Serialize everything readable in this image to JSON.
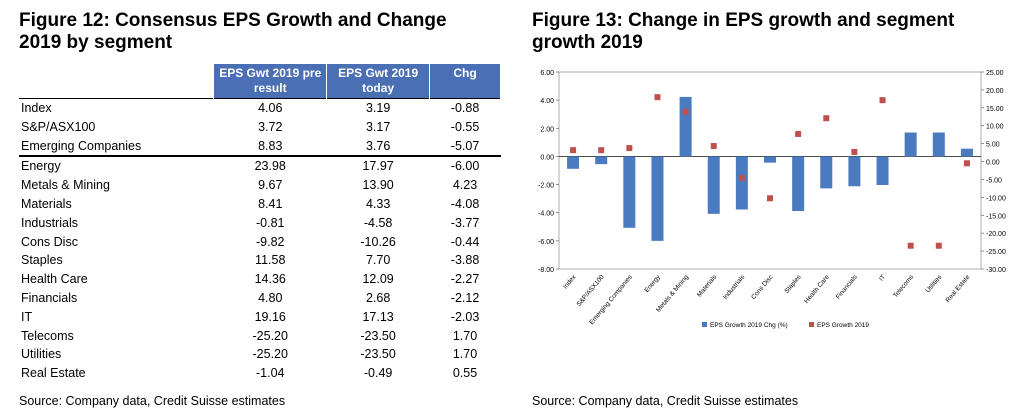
{
  "left": {
    "title": "Figure 12: Consensus EPS Growth and Change 2019 by segment",
    "columns": [
      "EPS Gwt 2019 pre result",
      "EPS Gwt 2019 today",
      "Chg"
    ],
    "rows": [
      {
        "label": "Index",
        "pre": "4.06",
        "today": "3.19",
        "chg": "-0.88"
      },
      {
        "label": "S&P/ASX100",
        "pre": "3.72",
        "today": "3.17",
        "chg": "-0.55"
      },
      {
        "label": "Emerging Companies",
        "pre": "8.83",
        "today": "3.76",
        "chg": "-5.07"
      },
      {
        "label": "Energy",
        "pre": "23.98",
        "today": "17.97",
        "chg": "-6.00"
      },
      {
        "label": "Metals & Mining",
        "pre": "9.67",
        "today": "13.90",
        "chg": "4.23"
      },
      {
        "label": "Materials",
        "pre": "8.41",
        "today": "4.33",
        "chg": "-4.08"
      },
      {
        "label": "Industrials",
        "pre": "-0.81",
        "today": "-4.58",
        "chg": "-3.77"
      },
      {
        "label": "Cons Disc",
        "pre": "-9.82",
        "today": "-10.26",
        "chg": "-0.44"
      },
      {
        "label": "Staples",
        "pre": "11.58",
        "today": "7.70",
        "chg": "-3.88"
      },
      {
        "label": "Health Care",
        "pre": "14.36",
        "today": "12.09",
        "chg": "-2.27"
      },
      {
        "label": "Financials",
        "pre": "4.80",
        "today": "2.68",
        "chg": "-2.12"
      },
      {
        "label": "IT",
        "pre": "19.16",
        "today": "17.13",
        "chg": "-2.03"
      },
      {
        "label": "Telecoms",
        "pre": "-25.20",
        "today": "-23.50",
        "chg": "1.70"
      },
      {
        "label": "Utilities",
        "pre": "-25.20",
        "today": "-23.50",
        "chg": "1.70"
      },
      {
        "label": "Real Estate",
        "pre": "-1.04",
        "today": "-0.49",
        "chg": "0.55"
      }
    ],
    "source": "Source: Company data, Credit Suisse estimates"
  },
  "right": {
    "title": "Figure 13: Change in EPS growth and segment growth 2019",
    "source": "Source: Company data, Credit Suisse estimates"
  },
  "chart_data": {
    "type": "bar",
    "categories": [
      "Index",
      "S&P/ASX100",
      "Emerging Companies",
      "Energy",
      "Metals & Mining",
      "Materials",
      "Industrials",
      "Cons Disc",
      "Staples",
      "Health Care",
      "Financials",
      "IT",
      "Telecoms",
      "Utilities",
      "Real Estate"
    ],
    "series": [
      {
        "name": "EPS Growth 2019 Chg (%)",
        "axis": "left",
        "type": "bar",
        "color": "#4a7abf",
        "values": [
          -0.88,
          -0.55,
          -5.07,
          -6.0,
          4.23,
          -4.08,
          -3.77,
          -0.44,
          -3.88,
          -2.27,
          -2.12,
          -2.03,
          1.7,
          1.7,
          0.55
        ]
      },
      {
        "name": "EPS Growth 2019",
        "axis": "right",
        "type": "scatter",
        "color": "#c0504d",
        "values": [
          3.19,
          3.17,
          3.76,
          17.97,
          13.9,
          4.33,
          -4.58,
          -10.26,
          7.7,
          12.09,
          2.68,
          17.13,
          -23.5,
          -23.5,
          -0.49
        ]
      }
    ],
    "ylim_left": [
      -8,
      6
    ],
    "ylim_right": [
      -30,
      25
    ],
    "yticks_left": [
      "6.00",
      "4.00",
      "2.00",
      "0.00",
      "-2.00",
      "-4.00",
      "-6.00",
      "-8.00"
    ],
    "yticks_right": [
      "25.00",
      "20.00",
      "15.00",
      "10.00",
      "5.00",
      "0.00",
      "-5.00",
      "-10.00",
      "-15.00",
      "-20.00",
      "-25.00",
      "-30.00"
    ],
    "legend_position": "bottom"
  }
}
